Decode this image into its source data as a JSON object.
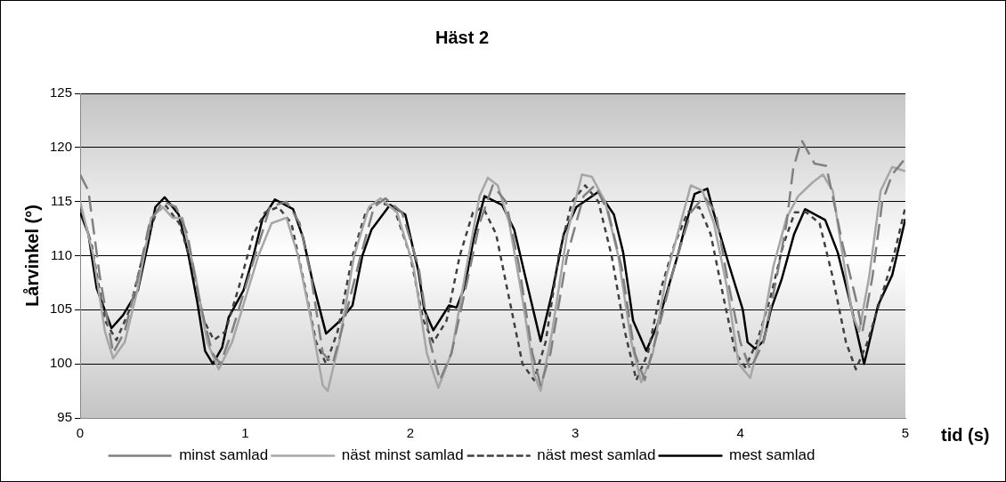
{
  "chart_data": {
    "type": "line",
    "title": "Häst 2",
    "xlabel": "tid (s)",
    "ylabel": "Lårvinkel (°)",
    "xlim": [
      0,
      5
    ],
    "xticks": [
      0,
      1,
      2,
      3,
      4,
      5
    ],
    "ylim": [
      95,
      125
    ],
    "yticks": [
      95,
      100,
      105,
      110,
      115,
      120,
      125
    ],
    "grid": "y",
    "legend": "bottom",
    "marker": "none",
    "series": [
      {
        "name": "minst samlad",
        "color": "#808080",
        "line_style": "dashed",
        "x": [
          0,
          0.05,
          0.12,
          0.2,
          0.27,
          0.35,
          0.42,
          0.5,
          0.58,
          0.65,
          0.72,
          0.8,
          0.85,
          0.92,
          1.0,
          1.08,
          1.15,
          1.25,
          1.33,
          1.4,
          1.47,
          1.53,
          1.6,
          1.7,
          1.78,
          1.85,
          1.95,
          2.05,
          2.12,
          2.18,
          2.25,
          2.35,
          2.42,
          2.5,
          2.58,
          2.66,
          2.74,
          2.79,
          2.85,
          2.95,
          3.05,
          3.12,
          3.2,
          3.28,
          3.36,
          3.42,
          3.5,
          3.6,
          3.7,
          3.78,
          3.85,
          3.92,
          4.0,
          4.06,
          4.14,
          4.22,
          4.28,
          4.32,
          4.37,
          4.45,
          4.52,
          4.58,
          4.62,
          4.7,
          4.74,
          4.8,
          4.86,
          4.92,
          5.0
        ],
        "values": [
          117.5,
          116,
          108,
          101,
          103,
          108,
          113,
          115,
          114.5,
          112,
          106,
          101,
          100,
          103,
          107,
          111,
          114.5,
          115,
          113,
          108,
          101,
          100,
          104,
          110,
          114.5,
          115.3,
          114,
          109,
          102,
          98.5,
          101,
          108,
          113,
          116.5,
          115,
          109,
          101,
          98,
          101,
          110,
          115.5,
          116.5,
          114,
          109,
          101,
          98.5,
          103,
          109,
          114,
          115.5,
          114,
          108,
          102,
          99.5,
          102,
          108,
          113,
          118,
          120.7,
          118.5,
          118.3,
          114,
          111,
          106,
          103,
          108,
          115,
          117.5,
          119
        ]
      },
      {
        "name": "näst minst samlad",
        "color": "#a6a6a6",
        "line_style": "solid",
        "x": [
          0,
          0.08,
          0.15,
          0.2,
          0.27,
          0.35,
          0.43,
          0.5,
          0.56,
          0.62,
          0.7,
          0.77,
          0.84,
          0.92,
          1.0,
          1.08,
          1.16,
          1.25,
          1.32,
          1.4,
          1.47,
          1.5,
          1.57,
          1.66,
          1.75,
          1.82,
          1.92,
          2.02,
          2.1,
          2.17,
          2.25,
          2.33,
          2.42,
          2.47,
          2.53,
          2.6,
          2.68,
          2.75,
          2.79,
          2.86,
          2.95,
          3.04,
          3.1,
          3.18,
          3.26,
          3.34,
          3.4,
          3.47,
          3.55,
          3.62,
          3.7,
          3.77,
          3.84,
          3.92,
          3.99,
          4.06,
          4.13,
          4.2,
          4.28,
          4.35,
          4.44,
          4.5,
          4.56,
          4.62,
          4.68,
          4.72,
          4.78,
          4.85,
          4.92,
          5.0
        ],
        "values": [
          115,
          110,
          103,
          100.5,
          102,
          107,
          113.5,
          114.5,
          113.5,
          113.5,
          108,
          102,
          99.5,
          102,
          106,
          110,
          113,
          113.5,
          110,
          104,
          98,
          97.5,
          102,
          110,
          114.5,
          115.3,
          114,
          109,
          101,
          97.8,
          101,
          108,
          115.5,
          117.2,
          116.5,
          113,
          106,
          99,
          97.5,
          103,
          112,
          117.5,
          117.3,
          115,
          110,
          102,
          98.3,
          101,
          108,
          112,
          116.5,
          116,
          113,
          107,
          100,
          98.7,
          103,
          109,
          113.5,
          115.5,
          116.8,
          117.5,
          116,
          110,
          104.5,
          103,
          108,
          116,
          118.2,
          117.8
        ]
      },
      {
        "name": "näst mest samlad",
        "color": "#404040",
        "line_style": "dotted",
        "x": [
          0,
          0.07,
          0.15,
          0.22,
          0.3,
          0.38,
          0.46,
          0.52,
          0.6,
          0.68,
          0.75,
          0.81,
          0.88,
          0.96,
          1.05,
          1.12,
          1.2,
          1.28,
          1.35,
          1.43,
          1.49,
          1.56,
          1.65,
          1.73,
          1.8,
          1.9,
          2.0,
          2.08,
          2.14,
          2.22,
          2.3,
          2.38,
          2.44,
          2.52,
          2.6,
          2.68,
          2.75,
          2.82,
          2.9,
          2.98,
          3.06,
          3.14,
          3.22,
          3.3,
          3.37,
          3.44,
          3.52,
          3.6,
          3.68,
          3.75,
          3.82,
          3.9,
          3.97,
          4.03,
          4.1,
          4.18,
          4.26,
          4.33,
          4.4,
          4.48,
          4.56,
          4.64,
          4.7,
          4.77,
          4.85,
          4.93,
          5.0
        ],
        "values": [
          114.5,
          111,
          104,
          102.2,
          105,
          110,
          114,
          114.6,
          113,
          109,
          104,
          102.2,
          103,
          107,
          112,
          114,
          114.5,
          113,
          108,
          102,
          100,
          103,
          110,
          114,
          115,
          114.5,
          110,
          104,
          102,
          104,
          110,
          114,
          114.5,
          112,
          106,
          100,
          98.5,
          102,
          110,
          115,
          116.5,
          115,
          110,
          103,
          98.5,
          101,
          107,
          111,
          114,
          114.5,
          112,
          106,
          101,
          99.7,
          102,
          106,
          111,
          114,
          114,
          113,
          108,
          102,
          99.5,
          102,
          106,
          110,
          114.5
        ]
      },
      {
        "name": "mest samlad",
        "color": "#000000",
        "line_style": "solid",
        "x": [
          0,
          0.05,
          0.1,
          0.19,
          0.26,
          0.35,
          0.41,
          0.456,
          0.512,
          0.597,
          0.653,
          0.71,
          0.757,
          0.804,
          0.86,
          0.9,
          0.99,
          1.05,
          1.105,
          1.18,
          1.29,
          1.35,
          1.41,
          1.49,
          1.576,
          1.65,
          1.71,
          1.765,
          1.878,
          1.97,
          2.05,
          2.085,
          2.14,
          2.235,
          2.28,
          2.33,
          2.386,
          2.45,
          2.556,
          2.63,
          2.706,
          2.79,
          2.857,
          2.93,
          3.007,
          3.14,
          3.234,
          3.29,
          3.35,
          3.43,
          3.497,
          3.572,
          3.62,
          3.666,
          3.723,
          3.8,
          3.836,
          3.93,
          4.015,
          4.044,
          4.09,
          4.14,
          4.185,
          4.25,
          4.326,
          4.392,
          4.514,
          4.59,
          4.665,
          4.75,
          4.834,
          4.92,
          5.0
        ],
        "values": [
          114,
          112,
          107,
          103.3,
          104.5,
          106.8,
          111,
          114.5,
          115.4,
          113.8,
          110.3,
          105.7,
          101.2,
          100,
          101.5,
          104.3,
          106.8,
          110,
          113.4,
          115.2,
          114.3,
          111.7,
          107.5,
          102.8,
          104,
          105.4,
          110,
          112.4,
          114.7,
          113.8,
          108.5,
          105,
          103.1,
          105.4,
          105.2,
          107.1,
          111.7,
          115.5,
          114.7,
          112.4,
          107.5,
          102.1,
          106.4,
          112,
          114.5,
          115.9,
          113.8,
          110.3,
          104,
          101.2,
          103.6,
          107.5,
          110,
          112.7,
          115.7,
          116.2,
          114.1,
          109.2,
          105,
          102,
          101.4,
          102.1,
          105,
          107.8,
          112,
          114.3,
          113.3,
          110.3,
          105.7,
          100,
          105.4,
          108.2,
          113.4
        ]
      }
    ]
  }
}
